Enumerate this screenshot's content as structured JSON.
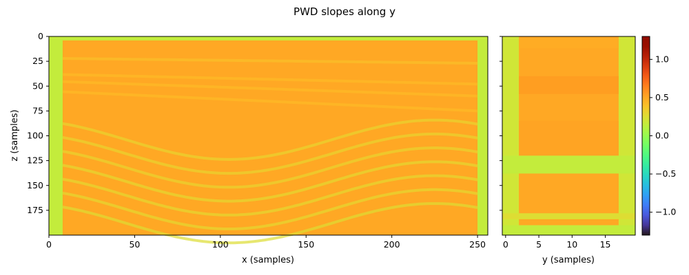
{
  "chart_data": {
    "type": "heatmap",
    "title": "PWD slopes along y",
    "colormap": "turbo",
    "colorbar": {
      "range": [
        -1.3,
        1.3
      ],
      "ticks": [
        1.0,
        0.5,
        0.0,
        -0.5,
        -1.0
      ],
      "tick_labels": [
        "1.0",
        "0.5",
        "0.0",
        "−0.5",
        "−1.0"
      ]
    },
    "panels": [
      {
        "name": "xz-section",
        "xlabel": "x (samples)",
        "ylabel": "z (samples)",
        "xlim": [
          0,
          256
        ],
        "ylim": [
          200,
          0
        ],
        "xticks": [
          0,
          50,
          100,
          150,
          200,
          250
        ],
        "xtick_labels": [
          "0",
          "50",
          "100",
          "150",
          "200",
          "250"
        ],
        "yticks": [
          0,
          25,
          50,
          75,
          100,
          125,
          150,
          175
        ],
        "ytick_labels": [
          "0",
          "25",
          "50",
          "75",
          "100",
          "125",
          "150",
          "175"
        ],
        "interior_value": 0.5,
        "edge_value": 0.15,
        "low_bands": [
          {
            "z": 27,
            "amp": 0,
            "value": 0.4
          },
          {
            "z": 48,
            "amp": 0,
            "value": 0.42
          },
          {
            "z": 60,
            "amp": 0,
            "value": 0.42
          },
          {
            "z": 75,
            "amp": 0,
            "value": 0.42
          },
          {
            "z": 104,
            "amp": 22,
            "value": 0.3
          },
          {
            "z": 118,
            "amp": 22,
            "value": 0.3
          },
          {
            "z": 132,
            "amp": 22,
            "value": 0.3
          },
          {
            "z": 146,
            "amp": 22,
            "value": 0.28
          },
          {
            "z": 160,
            "amp": 22,
            "value": 0.28
          },
          {
            "z": 174,
            "amp": 22,
            "value": 0.28
          },
          {
            "z": 188,
            "amp": 22,
            "value": 0.25
          }
        ]
      },
      {
        "name": "yz-section",
        "xlabel": "y (samples)",
        "ylabel": "",
        "xlim": [
          -0.5,
          19.5
        ],
        "ylim": [
          200,
          0
        ],
        "xticks": [
          0,
          5,
          10,
          15
        ],
        "xtick_labels": [
          "0",
          "5",
          "10",
          "15"
        ],
        "yticks": [
          0,
          25,
          50,
          75,
          100,
          125,
          150,
          175
        ],
        "interior_value": 0.5,
        "edge_value": 0.2,
        "bright_rows": [
          {
            "z0": 2,
            "z1": 12,
            "value": 0.48
          },
          {
            "z0": 40,
            "z1": 58,
            "value": 0.55
          },
          {
            "z0": 85,
            "z1": 120,
            "value": 0.52
          },
          {
            "z0": 142,
            "z1": 175,
            "value": 0.5
          }
        ],
        "low_rows": [
          {
            "z0": 120,
            "z1": 138,
            "value": 0.15
          },
          {
            "z0": 178,
            "z1": 184,
            "value": 0.25
          },
          {
            "z0": 190,
            "z1": 200,
            "value": 0.15
          }
        ]
      }
    ]
  }
}
